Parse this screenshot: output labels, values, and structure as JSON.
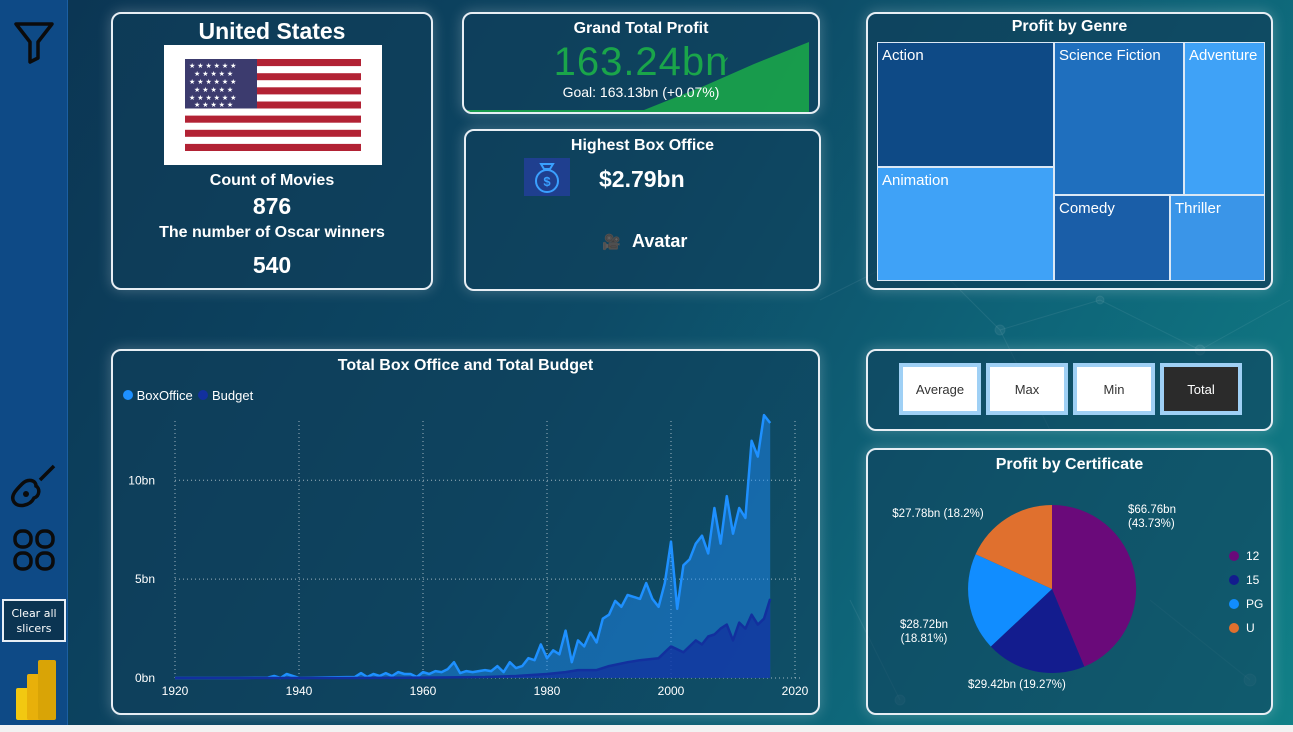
{
  "sidebar": {
    "clear_label": "Clear all slicers",
    "icons": [
      "filter-icon",
      "guitar-icon",
      "grid-icon",
      "powerbi-logo-icon"
    ]
  },
  "country_card": {
    "country": "United States",
    "count_label": "Count of Movies",
    "count_value": "876",
    "oscar_label": "The number of Oscar winners",
    "oscar_value": "540"
  },
  "profit_card": {
    "title": "Grand Total Profit",
    "value": "163.24bn",
    "goal": "Goal: 163.13bn (+0.07%)"
  },
  "boxoffice_card": {
    "title": "Highest Box Office",
    "value": "$2.79bn",
    "movie": "Avatar"
  },
  "genre_treemap": {
    "title": "Profit by Genre",
    "cells": [
      "Action",
      "Science Fiction",
      "Adventure",
      "Animation",
      "Comedy",
      "Thriller"
    ]
  },
  "aggregation_buttons": {
    "items": [
      "Average",
      "Max",
      "Min",
      "Total"
    ],
    "selected": "Total"
  },
  "colors": {
    "boxoffice": "#1e90ff",
    "budget": "#12309e",
    "cert_12": "#6a0a7a",
    "cert_15": "#131c8e",
    "cert_PG": "#118dff",
    "cert_U": "#e0702e",
    "profit_green": "#1aa54a"
  },
  "chart_data": [
    {
      "type": "area",
      "title": "Total Box Office and Total Budget",
      "x_ticks": [
        "1920",
        "1940",
        "1960",
        "1980",
        "2000",
        "2020"
      ],
      "y_ticks": [
        "0bn",
        "5bn",
        "10bn"
      ],
      "xlim": [
        1920,
        2020
      ],
      "ylim": [
        0,
        13
      ],
      "grid": true,
      "legend_position": "top-left",
      "series": [
        {
          "name": "BoxOffice",
          "x": [
            1920,
            1925,
            1930,
            1935,
            1936,
            1937,
            1938,
            1940,
            1945,
            1949,
            1950,
            1951,
            1952,
            1953,
            1954,
            1955,
            1956,
            1957,
            1958,
            1959,
            1960,
            1961,
            1962,
            1963,
            1964,
            1965,
            1966,
            1967,
            1968,
            1969,
            1970,
            1971,
            1972,
            1973,
            1974,
            1975,
            1976,
            1977,
            1978,
            1979,
            1980,
            1981,
            1982,
            1983,
            1984,
            1985,
            1986,
            1987,
            1988,
            1989,
            1990,
            1991,
            1992,
            1993,
            1994,
            1995,
            1996,
            1997,
            1998,
            1999,
            2000,
            2001,
            2002,
            2003,
            2004,
            2005,
            2006,
            2007,
            2008,
            2009,
            2010,
            2011,
            2012,
            2013,
            2014,
            2015,
            2016
          ],
          "values": [
            0,
            0,
            0,
            0.02,
            0.1,
            0,
            0.2,
            0,
            0.03,
            0.05,
            0.25,
            0.05,
            0.2,
            0.1,
            0.25,
            0.1,
            0.3,
            0.2,
            0.2,
            0.05,
            0.3,
            0.2,
            0.35,
            0.3,
            0.45,
            0.8,
            0.25,
            0.35,
            0.3,
            0.35,
            0.4,
            0.35,
            0.6,
            0.3,
            0.8,
            0.5,
            0.6,
            1.0,
            0.9,
            1.7,
            1.0,
            1.4,
            1.2,
            2.4,
            0.8,
            1.9,
            1.6,
            2.3,
            1.8,
            3.0,
            3.2,
            3.9,
            3.6,
            4.2,
            4.1,
            4.0,
            4.8,
            4.0,
            3.6,
            4.8,
            6.9,
            3.5,
            5.7,
            6.0,
            6.8,
            7.2,
            6.3,
            8.6,
            6.8,
            9.2,
            7.3,
            8.6,
            8.1,
            12.0,
            11.2,
            13.3,
            12.9
          ]
        },
        {
          "name": "Budget",
          "x": [
            1920,
            1930,
            1940,
            1950,
            1960,
            1970,
            1975,
            1980,
            1983,
            1985,
            1988,
            1990,
            1993,
            1995,
            1998,
            2000,
            2002,
            2004,
            2005,
            2006,
            2007,
            2008,
            2009,
            2010,
            2011,
            2012,
            2013,
            2014,
            2015,
            2016
          ],
          "values": [
            0,
            0,
            0,
            0,
            0.02,
            0.05,
            0.1,
            0.2,
            0.3,
            0.4,
            0.4,
            0.6,
            0.8,
            0.9,
            1.0,
            1.6,
            1.3,
            1.9,
            1.7,
            2.1,
            2.2,
            2.5,
            2.7,
            1.9,
            2.8,
            2.5,
            3.2,
            2.7,
            3.0,
            4.0
          ]
        }
      ]
    },
    {
      "type": "pie",
      "title": "Profit by Certificate",
      "legend_position": "right",
      "categories": [
        "12",
        "15",
        "PG",
        "U"
      ],
      "values": [
        66.76,
        29.42,
        28.72,
        27.78
      ],
      "labels": [
        "$66.76bn (43.73%)",
        "$29.42bn (19.27%)",
        "$28.72bn (18.81%)",
        "$27.78bn (18.2%)"
      ]
    }
  ]
}
